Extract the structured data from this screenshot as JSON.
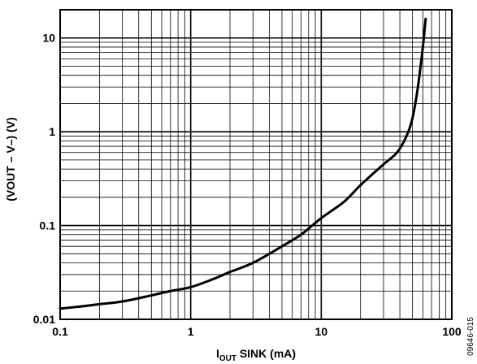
{
  "chart_data": {
    "type": "line",
    "xscale": "log",
    "yscale": "log",
    "xlim": [
      0.1,
      100
    ],
    "ylim": [
      0.01,
      20
    ],
    "grid": true,
    "legend": "none",
    "xlabel": {
      "main": "I",
      "sub": "OUT",
      "rest": " SINK (mA)"
    },
    "ylabel": "(VOUT – V–) (V)",
    "x_ticks": [
      {
        "value": 0.1,
        "label": "0.1"
      },
      {
        "value": 1,
        "label": "1"
      },
      {
        "value": 10,
        "label": "10"
      },
      {
        "value": 100,
        "label": "100"
      }
    ],
    "y_ticks": [
      {
        "value": 0.01,
        "label": "0.01"
      },
      {
        "value": 0.1,
        "label": "0.1"
      },
      {
        "value": 1,
        "label": "1"
      },
      {
        "value": 10,
        "label": "10"
      }
    ],
    "series": [
      {
        "color": "#000000",
        "points": [
          {
            "x": 0.1,
            "y": 0.013
          },
          {
            "x": 0.15,
            "y": 0.0138
          },
          {
            "x": 0.2,
            "y": 0.0145
          },
          {
            "x": 0.3,
            "y": 0.0155
          },
          {
            "x": 0.5,
            "y": 0.018
          },
          {
            "x": 0.7,
            "y": 0.02
          },
          {
            "x": 1,
            "y": 0.022
          },
          {
            "x": 1.5,
            "y": 0.027
          },
          {
            "x": 2,
            "y": 0.032
          },
          {
            "x": 3,
            "y": 0.04
          },
          {
            "x": 5,
            "y": 0.06
          },
          {
            "x": 7,
            "y": 0.08
          },
          {
            "x": 10,
            "y": 0.12
          },
          {
            "x": 15,
            "y": 0.18
          },
          {
            "x": 20,
            "y": 0.27
          },
          {
            "x": 30,
            "y": 0.45
          },
          {
            "x": 38,
            "y": 0.6
          },
          {
            "x": 45,
            "y": 0.9
          },
          {
            "x": 50,
            "y": 1.4
          },
          {
            "x": 55,
            "y": 3
          },
          {
            "x": 60,
            "y": 8
          },
          {
            "x": 63,
            "y": 16
          }
        ]
      }
    ]
  },
  "figure_id": "09646-015"
}
